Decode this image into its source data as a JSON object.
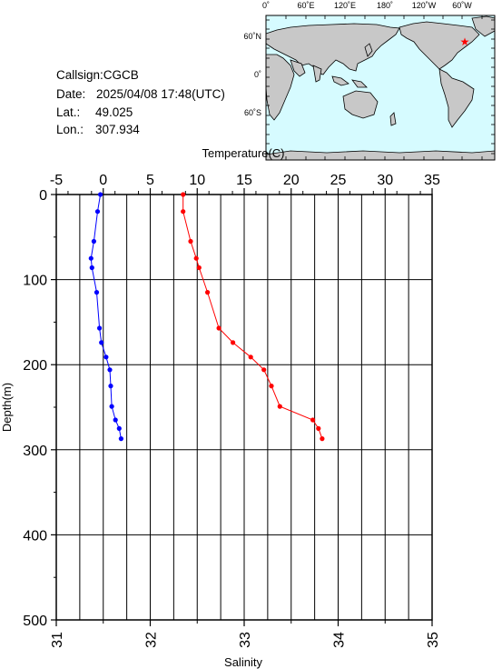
{
  "station": {
    "callsign_line": "Callsign:CGCB",
    "date_label": "Date:",
    "date_value": "2025/04/08 17:48(UTC)",
    "lat_label": "Lat.:",
    "lat_value": "49.025",
    "lon_label": "Lon.:",
    "lon_value": "307.934"
  },
  "map": {
    "lon_ticks": [
      "0˚",
      "60˚E",
      "120˚E",
      "180˚",
      "120˚W",
      "60˚W"
    ],
    "lat_ticks": [
      "60˚N",
      "0˚",
      "60˚S"
    ],
    "ocean_color": "#d6fbff",
    "land_color": "#c8c8c8",
    "marker_color": "#ff0000",
    "marker_symbol": "★"
  },
  "chart_data": {
    "type": "line",
    "ylabel": "Depth(m)",
    "xlabel_top": "Temperature(C)",
    "xlabel_bottom": "Salinity",
    "ylim": [
      0,
      500
    ],
    "y_inverted": true,
    "y_ticks": [
      "0",
      "100",
      "200",
      "300",
      "400",
      "500"
    ],
    "temperature_axis": {
      "range": [
        -5,
        35
      ],
      "ticks": [
        "-5",
        "0",
        "5",
        "10",
        "15",
        "20",
        "25",
        "30",
        "35"
      ]
    },
    "salinity_axis": {
      "range": [
        31,
        35
      ],
      "ticks": [
        "31",
        "32",
        "33",
        "34",
        "35"
      ]
    },
    "grid": true,
    "series": [
      {
        "axis": "salinity",
        "color": "#0000ff",
        "points": [
          [
            31.47,
            0
          ],
          [
            31.44,
            20
          ],
          [
            31.4,
            55
          ],
          [
            31.37,
            75
          ],
          [
            31.38,
            86
          ],
          [
            31.43,
            115
          ],
          [
            31.46,
            157
          ],
          [
            31.48,
            174
          ],
          [
            31.53,
            191
          ],
          [
            31.57,
            206
          ],
          [
            31.58,
            225
          ],
          [
            31.59,
            249
          ],
          [
            31.63,
            265
          ],
          [
            31.67,
            275
          ],
          [
            31.69,
            287
          ]
        ]
      },
      {
        "axis": "temperature",
        "color": "#ff0000",
        "points": [
          [
            8.5,
            0
          ],
          [
            8.5,
            20
          ],
          [
            9.3,
            55
          ],
          [
            9.9,
            75
          ],
          [
            10.2,
            86
          ],
          [
            11.1,
            115
          ],
          [
            12.3,
            157
          ],
          [
            13.8,
            174
          ],
          [
            15.7,
            191
          ],
          [
            17.1,
            206
          ],
          [
            17.9,
            225
          ],
          [
            18.8,
            249
          ],
          [
            22.3,
            265
          ],
          [
            22.9,
            275
          ],
          [
            23.3,
            287
          ]
        ]
      }
    ]
  }
}
